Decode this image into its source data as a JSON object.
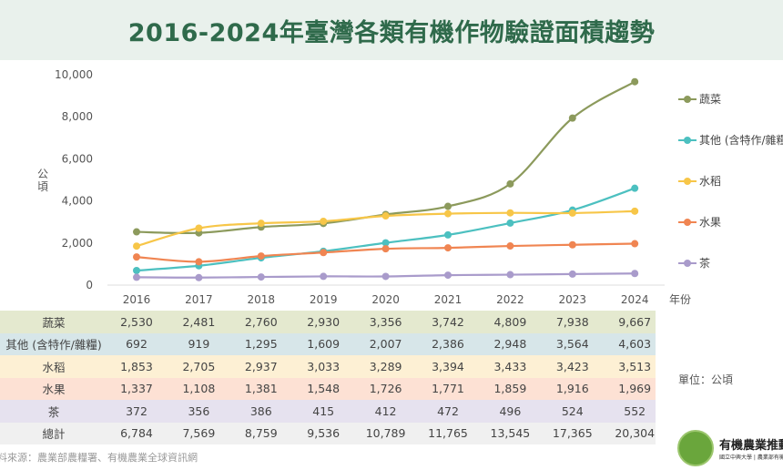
{
  "title": "2016-2024年臺灣各類有機作物驗證面積趨勢",
  "chart_data": {
    "type": "line",
    "title": "2016-2024年臺灣各類有機作物驗證面積趨勢",
    "xlabel": "年份",
    "ylabel": "公頃",
    "x": [
      "2016",
      "2017",
      "2018",
      "2019",
      "2020",
      "2021",
      "2022",
      "2023",
      "2024"
    ],
    "ylim": [
      0,
      10000
    ],
    "yticks": [
      "0",
      "2,000",
      "4,000",
      "6,000",
      "8,000",
      "10,000"
    ],
    "legend_position": "right",
    "series": [
      {
        "name": "蔬菜",
        "color": "#8c9a5c",
        "values": [
          2530,
          2481,
          2760,
          2930,
          3356,
          3742,
          4809,
          7938,
          9667
        ],
        "labels": [
          "2,530",
          "2,481",
          "2,760",
          "2,930",
          "3,356",
          "3,742",
          "4,809",
          "7,938",
          "9,667"
        ],
        "bg": "#e4e9cf"
      },
      {
        "name": "其他 (含特作/雜糧)",
        "color": "#4cc0c0",
        "values": [
          692,
          919,
          1295,
          1609,
          2007,
          2386,
          2948,
          3564,
          4603
        ],
        "labels": [
          "692",
          "919",
          "1,295",
          "1,609",
          "2,007",
          "2,386",
          "2,948",
          "3,564",
          "4,603"
        ],
        "bg": "#d7e6e9"
      },
      {
        "name": "水稻",
        "color": "#f7c648",
        "values": [
          1853,
          2705,
          2937,
          3033,
          3289,
          3394,
          3433,
          3423,
          3513
        ],
        "labels": [
          "1,853",
          "2,705",
          "2,937",
          "3,033",
          "3,289",
          "3,394",
          "3,433",
          "3,423",
          "3,513"
        ],
        "bg": "#fdf0d4"
      },
      {
        "name": "水果",
        "color": "#f08552",
        "values": [
          1337,
          1108,
          1381,
          1548,
          1726,
          1771,
          1859,
          1916,
          1969
        ],
        "labels": [
          "1,337",
          "1,108",
          "1,381",
          "1,548",
          "1,726",
          "1,771",
          "1,859",
          "1,916",
          "1,969"
        ],
        "bg": "#fde1d4"
      },
      {
        "name": "茶",
        "color": "#a99bcb",
        "values": [
          372,
          356,
          386,
          415,
          412,
          472,
          496,
          524,
          552
        ],
        "labels": [
          "372",
          "356",
          "386",
          "415",
          "412",
          "472",
          "496",
          "524",
          "552"
        ],
        "bg": "#e6e2ef"
      }
    ],
    "total": {
      "name": "總計",
      "labels": [
        "6,784",
        "7,569",
        "8,759",
        "9,536",
        "10,789",
        "11,765",
        "13,545",
        "17,365",
        "20,304"
      ],
      "bg": "#f0f0f0"
    }
  },
  "unit": "單位：公頃",
  "source": "資料來源：農業部農糧署、有機農業全球資訊網",
  "logo": {
    "name": "有機農業推動中心",
    "subtitle": "國立中興大學 | 農業部有機農業驗證"
  }
}
